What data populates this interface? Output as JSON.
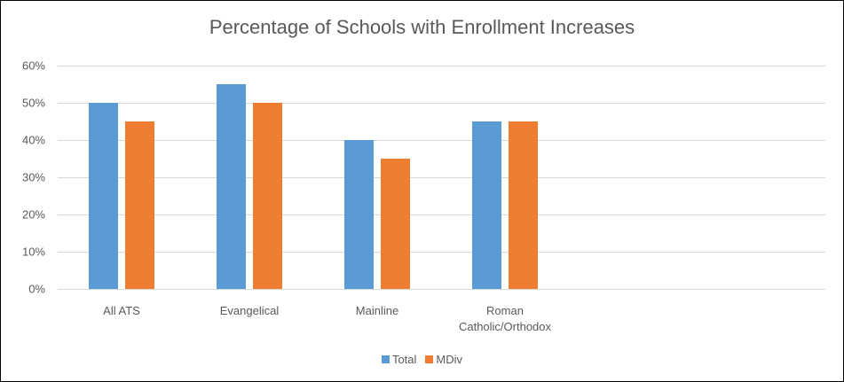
{
  "chart_data": {
    "type": "bar",
    "title": "Percentage of Schools with Enrollment Increases",
    "categories": [
      [
        "All ATS"
      ],
      [
        "Evangelical"
      ],
      [
        "Mainline"
      ],
      [
        "Roman",
        "Catholic/Orthodox"
      ]
    ],
    "series": [
      {
        "name": "Total",
        "color": "#5B9BD5",
        "values": [
          50,
          55,
          40,
          45
        ]
      },
      {
        "name": "MDiv",
        "color": "#ED7D31",
        "values": [
          45,
          50,
          35,
          45
        ]
      }
    ],
    "y_ticks": [
      "0%",
      "10%",
      "20%",
      "30%",
      "40%",
      "50%",
      "60%"
    ],
    "ylim": [
      0,
      60
    ],
    "grid": true,
    "gridline_color": "#D9D9D9",
    "legend_position": "bottom"
  }
}
